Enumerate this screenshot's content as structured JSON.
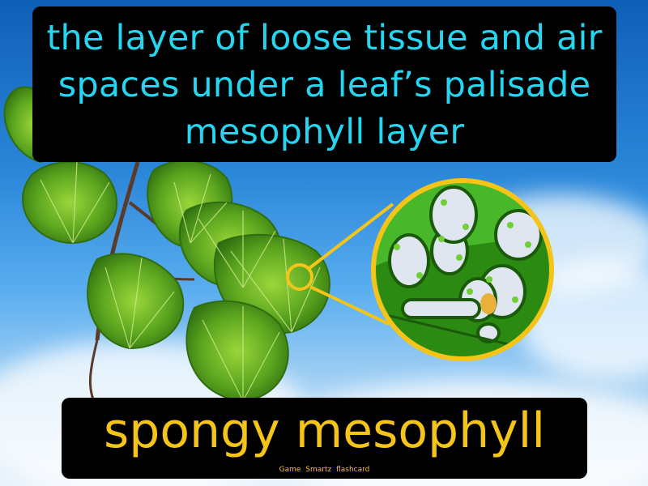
{
  "flashcard": {
    "definition": "the layer of loose tissue and air spaces under a leaf’s palisade mesophyll layer",
    "term": "spongy mesophyll",
    "credit": "Game Smartz flashcard"
  },
  "colors": {
    "definition_text": "#26d6f0",
    "term_text": "#f5c418",
    "box_background": "#000000",
    "callout_ring": "#f5c418"
  }
}
